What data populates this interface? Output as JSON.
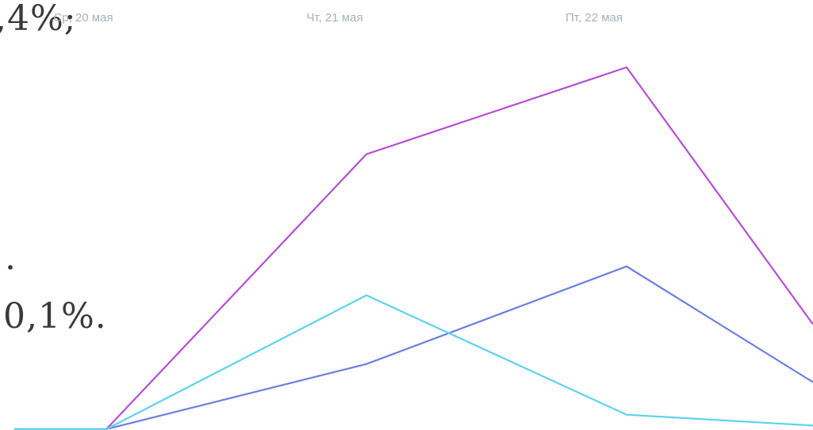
{
  "background_text": {
    "line1": ",4%;",
    "line2": ".",
    "line3": "0,1%."
  },
  "chart_data": {
    "type": "line",
    "x_tick_labels": [
      "Ср, 20 мая",
      "Чт, 21 мая",
      "Пт, 22 мая"
    ],
    "x": [
      0,
      1,
      2,
      3,
      4
    ],
    "ylim": [
      0,
      100
    ],
    "grid": false,
    "series": [
      {
        "key": "purple",
        "color": "#b54fd4",
        "values": [
          0,
          0,
          76,
          100,
          29
        ]
      },
      {
        "key": "blue",
        "color": "#6b7fe0",
        "values": [
          0,
          0,
          18,
          45,
          13
        ]
      },
      {
        "key": "cyan",
        "color": "#5cd3ee",
        "values": [
          0,
          0,
          37,
          4,
          1
        ]
      }
    ]
  }
}
